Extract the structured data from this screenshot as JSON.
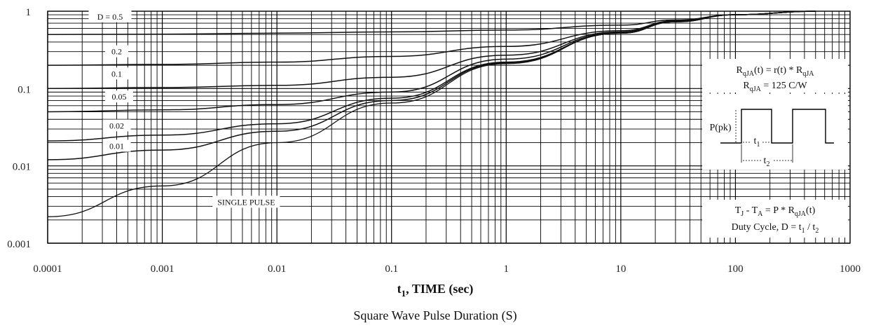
{
  "chart_data": {
    "type": "line",
    "x_scale": "log",
    "y_scale": "log",
    "xlim": [
      0.0001,
      1000
    ],
    "ylim": [
      0.001,
      1
    ],
    "grid": true,
    "x_tick_labels": [
      "0.0001",
      "0.001",
      "0.01",
      "0.1",
      "1",
      "10",
      "100",
      "1000"
    ],
    "y_tick_labels": [
      "1",
      "0.1",
      "0.01",
      "0.001"
    ],
    "xlabel": {
      "main": "t",
      "sub": "1",
      "rest": ", TIME (sec)"
    },
    "caption": "Square Wave Pulse Duration (S)",
    "series": [
      {
        "name": "D = 0.5",
        "x": [
          0.0001,
          0.001,
          0.01,
          0.1,
          1,
          10,
          30,
          100,
          500
        ],
        "y": [
          0.5,
          0.505,
          0.52,
          0.54,
          0.57,
          0.66,
          0.77,
          0.9,
          1.0
        ]
      },
      {
        "name": "0.2",
        "x": [
          0.0001,
          0.001,
          0.01,
          0.1,
          1,
          10,
          30,
          100,
          500
        ],
        "y": [
          0.2,
          0.205,
          0.22,
          0.26,
          0.35,
          0.56,
          0.75,
          0.9,
          1.0
        ]
      },
      {
        "name": "0.1",
        "x": [
          0.0001,
          0.001,
          0.01,
          0.1,
          1,
          10,
          30,
          100,
          500
        ],
        "y": [
          0.1,
          0.103,
          0.11,
          0.14,
          0.27,
          0.54,
          0.74,
          0.9,
          1.0
        ]
      },
      {
        "name": "0.05",
        "x": [
          0.0001,
          0.001,
          0.01,
          0.1,
          1,
          10,
          30,
          100,
          500
        ],
        "y": [
          0.05,
          0.053,
          0.062,
          0.09,
          0.24,
          0.53,
          0.74,
          0.9,
          1.0
        ]
      },
      {
        "name": "0.02",
        "x": [
          0.0001,
          0.001,
          0.01,
          0.1,
          1,
          10,
          30,
          100,
          500
        ],
        "y": [
          0.021,
          0.025,
          0.035,
          0.075,
          0.22,
          0.52,
          0.73,
          0.9,
          1.0
        ]
      },
      {
        "name": "0.01",
        "x": [
          0.0001,
          0.001,
          0.01,
          0.1,
          1,
          10,
          30,
          100,
          500
        ],
        "y": [
          0.012,
          0.016,
          0.028,
          0.07,
          0.215,
          0.52,
          0.73,
          0.9,
          1.0
        ]
      },
      {
        "name": "SINGLE PULSE",
        "x": [
          0.0001,
          0.001,
          0.01,
          0.1,
          1,
          10,
          30,
          100,
          500
        ],
        "y": [
          0.0022,
          0.0055,
          0.02,
          0.065,
          0.21,
          0.52,
          0.73,
          0.9,
          1.0
        ]
      }
    ],
    "series_labels": [
      {
        "text": "D = 0.5",
        "x": 0.00035,
        "y": 0.85
      },
      {
        "text": "0.2",
        "x": 0.0004,
        "y": 0.3
      },
      {
        "text": "0.1",
        "x": 0.0004,
        "y": 0.155
      },
      {
        "text": "0.05",
        "x": 0.00042,
        "y": 0.078
      },
      {
        "text": "0.02",
        "x": 0.0004,
        "y": 0.033
      },
      {
        "text": "0.01",
        "x": 0.0004,
        "y": 0.018
      },
      {
        "text": "SINGLE PULSE",
        "x": 0.0054,
        "y": 0.0034
      }
    ],
    "annotations": {
      "formula_1": {
        "pre": "R",
        "sub": "qJA",
        "mid": "(t) = r(t) * R",
        "sub2": "qJA"
      },
      "formula_2": {
        "pre": "R",
        "sub": "qJA",
        "rest": " = 125 C/W"
      },
      "ppk_label": "P(pk)",
      "t1_label": {
        "pre": "t",
        "sub": "1"
      },
      "t2_label": {
        "pre": "t",
        "sub": "2"
      },
      "formula_3": {
        "a": "T",
        "a_sub": "J",
        "b": " - T",
        "b_sub": "A",
        "c": " = P * R",
        "c_sub": "qJA",
        "d": "(t)"
      },
      "formula_4": {
        "pre": "Duty Cycle, D = t",
        "sub": "1",
        "mid": " / t",
        "sub2": "2"
      }
    }
  }
}
